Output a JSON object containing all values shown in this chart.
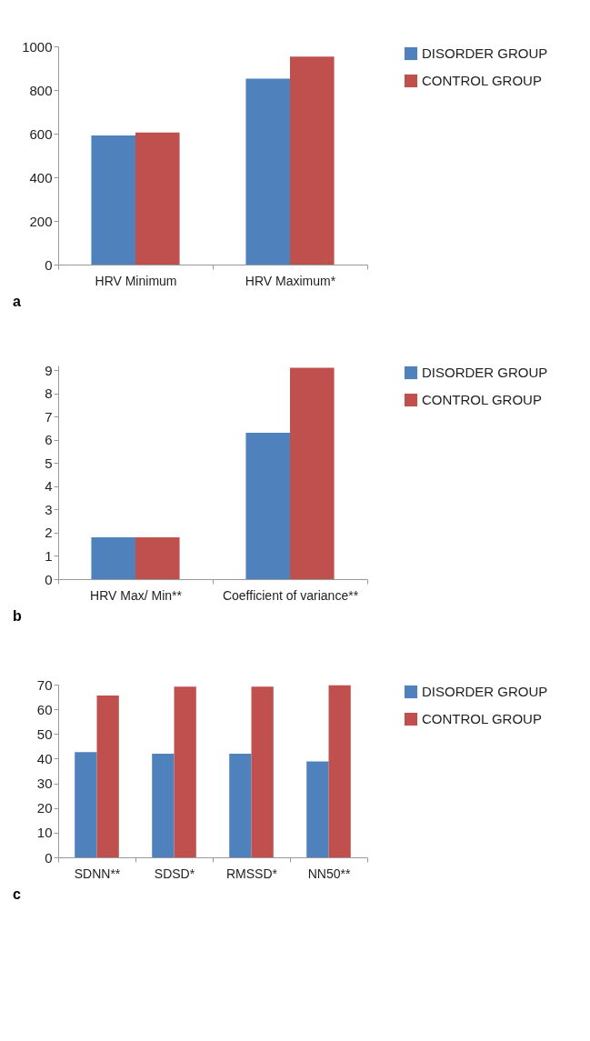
{
  "chart_data": [
    {
      "type": "bar",
      "categories": [
        "HRV Minimum",
        "HRV Maximum*"
      ],
      "ylim": [
        0,
        1000
      ],
      "yticks": [
        0,
        200,
        400,
        600,
        800,
        1000
      ],
      "legend": "right",
      "grid": false,
      "annotations": [
        "a"
      ],
      "series": [
        {
          "name": "DISORDER GROUP",
          "color": "#4f81bd",
          "values": [
            592,
            852
          ]
        },
        {
          "name": "CONTROL GROUP",
          "color": "#c0504d",
          "values": [
            605,
            953
          ]
        }
      ]
    },
    {
      "type": "bar",
      "categories": [
        "HRV Max/ Min**",
        "Coefficient of variance**"
      ],
      "ylim": [
        0,
        9.2
      ],
      "yticks": [
        0,
        1,
        2,
        3,
        4,
        5,
        6,
        7,
        8,
        9
      ],
      "legend": "right",
      "grid": false,
      "annotations": [
        "b"
      ],
      "series": [
        {
          "name": "DISORDER GROUP",
          "color": "#4f81bd",
          "values": [
            1.8,
            6.3
          ]
        },
        {
          "name": "CONTROL GROUP",
          "color": "#c0504d",
          "values": [
            1.8,
            9.1
          ]
        }
      ]
    },
    {
      "type": "bar",
      "categories": [
        "SDNN**",
        "SDSD*",
        "RMSSD*",
        "NN50**"
      ],
      "ylim": [
        0,
        70
      ],
      "yticks": [
        0,
        10,
        20,
        30,
        40,
        50,
        60,
        70
      ],
      "legend": "right",
      "grid": false,
      "annotations": [
        "c"
      ],
      "series": [
        {
          "name": "DISORDER GROUP",
          "color": "#4f81bd",
          "values": [
            42.6,
            42.0,
            42.0,
            38.9
          ]
        },
        {
          "name": "CONTROL GROUP",
          "color": "#c0504d",
          "values": [
            65.6,
            69.2,
            69.2,
            69.7
          ]
        }
      ]
    }
  ]
}
